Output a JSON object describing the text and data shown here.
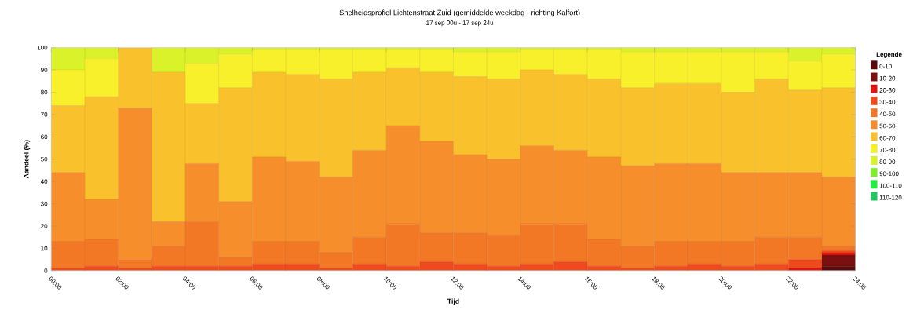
{
  "chart_data": {
    "type": "bar",
    "stacked": true,
    "title": "Snelheidsprofiel Lichtenstraat Zuid (gemiddelde weekdag - richting Kalfort)",
    "subtitle": "17 sep 00u - 17 sep 24u",
    "xlabel": "Tijd",
    "ylabel": "Aandeel (%)",
    "legend_title": "Legende",
    "legend": "right",
    "x": [
      0.5,
      1.5,
      2.5,
      3.5,
      4.5,
      5.5,
      6.5,
      7.5,
      8.5,
      9.5,
      10.5,
      11.5,
      12.5,
      13.5,
      14.5,
      15.5,
      16.5,
      17.5,
      18.5,
      19.5,
      20.5,
      21.5,
      22.5,
      23.5
    ],
    "xlim": [
      0,
      24
    ],
    "xticks": [
      {
        "value": 0,
        "label": "00:00"
      },
      {
        "value": 2,
        "label": "02:00"
      },
      {
        "value": 4,
        "label": "04:00"
      },
      {
        "value": 6,
        "label": "06:00"
      },
      {
        "value": 8,
        "label": "08:00"
      },
      {
        "value": 10,
        "label": "10:00"
      },
      {
        "value": 12,
        "label": "12:00"
      },
      {
        "value": 14,
        "label": "14:00"
      },
      {
        "value": 16,
        "label": "16:00"
      },
      {
        "value": 18,
        "label": "18:00"
      },
      {
        "value": 20,
        "label": "20:00"
      },
      {
        "value": 22,
        "label": "22:00"
      },
      {
        "value": 24,
        "label": "24:00"
      }
    ],
    "ylim": [
      0,
      100
    ],
    "yticks": [
      0,
      10,
      20,
      30,
      40,
      50,
      60,
      70,
      80,
      90,
      100
    ],
    "series": [
      {
        "name": "0-10",
        "color": "#5a0a0a",
        "values": [
          0,
          0,
          0,
          0,
          0,
          0,
          0,
          0,
          0,
          0,
          0,
          0,
          0,
          0,
          0,
          0,
          0,
          0,
          0,
          0,
          0,
          0,
          0,
          2
        ]
      },
      {
        "name": "10-20",
        "color": "#7a1010",
        "values": [
          0,
          0,
          0,
          0,
          0,
          0,
          0,
          0,
          0,
          0,
          0,
          0,
          0,
          0,
          0,
          0,
          0,
          0,
          0,
          0,
          0,
          0,
          0,
          5
        ]
      },
      {
        "name": "20-30",
        "color": "#e41414",
        "values": [
          0,
          0,
          0,
          0,
          0,
          0,
          0,
          0,
          0,
          0,
          0,
          0,
          0,
          0,
          0,
          0,
          0,
          0,
          0,
          0,
          0,
          0,
          1,
          1
        ]
      },
      {
        "name": "30-40",
        "color": "#ee4a1e",
        "values": [
          1,
          2,
          1,
          2,
          2,
          2,
          3,
          3,
          1,
          3,
          2,
          4,
          3,
          2,
          3,
          4,
          2,
          1,
          2,
          3,
          2,
          3,
          4,
          1
        ]
      },
      {
        "name": "40-50",
        "color": "#f27826",
        "values": [
          12,
          12,
          4,
          9,
          20,
          4,
          10,
          10,
          7,
          12,
          19,
          13,
          14,
          14,
          18,
          17,
          12,
          10,
          11,
          10,
          11,
          12,
          10,
          2
        ]
      },
      {
        "name": "50-60",
        "color": "#f78e2c",
        "values": [
          31,
          18,
          68,
          11,
          26,
          25,
          38,
          36,
          34,
          39,
          44,
          41,
          35,
          34,
          35,
          33,
          37,
          36,
          35,
          35,
          31,
          29,
          29,
          31
        ]
      },
      {
        "name": "60-70",
        "color": "#f9c22c",
        "values": [
          30,
          46,
          27,
          67,
          27,
          51,
          38,
          39,
          44,
          35,
          26,
          31,
          35,
          36,
          34,
          34,
          35,
          35,
          36,
          36,
          36,
          42,
          37,
          40
        ]
      },
      {
        "name": "70-80",
        "color": "#f8f02a",
        "values": [
          16,
          17,
          0,
          0,
          18,
          15,
          10,
          11,
          13,
          10,
          8,
          10,
          11,
          12,
          9,
          11,
          13,
          16,
          14,
          14,
          18,
          12,
          13,
          15
        ]
      },
      {
        "name": "80-90",
        "color": "#daf22a",
        "values": [
          10,
          5,
          0,
          11,
          7,
          3,
          1,
          1,
          1,
          1,
          1,
          1,
          2,
          2,
          1,
          1,
          1,
          2,
          2,
          2,
          2,
          2,
          6,
          3
        ]
      },
      {
        "name": "90-100",
        "color": "#7ef02a",
        "values": [
          0,
          0,
          0,
          0,
          0,
          0,
          0,
          0,
          0,
          0,
          0,
          0,
          0,
          0,
          0,
          0,
          0,
          0,
          0,
          0,
          0,
          0,
          0,
          0
        ]
      },
      {
        "name": "100-110",
        "color": "#22f040",
        "values": [
          0,
          0,
          0,
          0,
          0,
          0,
          0,
          0,
          0,
          0,
          0,
          0,
          0,
          0,
          0,
          0,
          0,
          0,
          0,
          0,
          0,
          0,
          0,
          0
        ]
      },
      {
        "name": "110-120",
        "color": "#22c864",
        "values": [
          0,
          0,
          0,
          0,
          0,
          0,
          0,
          0,
          0,
          0,
          0,
          0,
          0,
          0,
          0,
          0,
          0,
          0,
          0,
          0,
          0,
          0,
          0,
          0
        ]
      }
    ]
  }
}
